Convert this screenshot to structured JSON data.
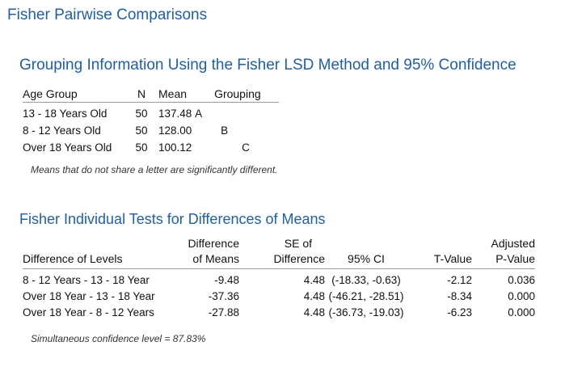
{
  "page_title": "Fisher Pairwise Comparisons",
  "grouping": {
    "title": "Grouping Information Using the Fisher LSD Method and 95% Confidence",
    "headers": [
      "Age Group",
      "N",
      "Mean",
      "Grouping"
    ],
    "rows": [
      {
        "group": "13 - 18 Years Old",
        "n": "50",
        "mean": "137.48",
        "grouping": "A",
        "col": 0
      },
      {
        "group": "8 - 12 Years Old",
        "n": "50",
        "mean": "128.00",
        "grouping": "B",
        "col": 1
      },
      {
        "group": "Over 18 Years Old",
        "n": "50",
        "mean": "100.12",
        "grouping": "C",
        "col": 2
      }
    ],
    "note": "Means that do not share a letter are significantly different."
  },
  "fisher_tests": {
    "title": "Fisher Individual Tests for Differences of Means",
    "headers_line1": [
      "",
      "Difference",
      "SE of",
      "",
      "",
      "Adjusted"
    ],
    "headers_line2": [
      "Difference of Levels",
      "of Means",
      "Difference",
      "95% CI",
      "T-Value",
      "P-Value"
    ],
    "rows": [
      {
        "levels": "8 - 12 Years - 13 - 18 Year",
        "diff": "-9.48",
        "se": "4.48",
        "ci": "(-18.33, -0.63)",
        "t": "-2.12",
        "p": "0.036"
      },
      {
        "levels": "Over 18 Year - 13 - 18 Year",
        "diff": "-37.36",
        "se": "4.48",
        "ci": "(-46.21, -28.51)",
        "t": "-8.34",
        "p": "0.000"
      },
      {
        "levels": "Over 18 Year - 8 - 12 Years",
        "diff": "-27.88",
        "se": "4.48",
        "ci": "(-36.73, -19.03)",
        "t": "-6.23",
        "p": "0.000"
      }
    ],
    "note": "Simultaneous confidence level = 87.83%"
  },
  "colors": {
    "title": "#1f5fa8"
  }
}
